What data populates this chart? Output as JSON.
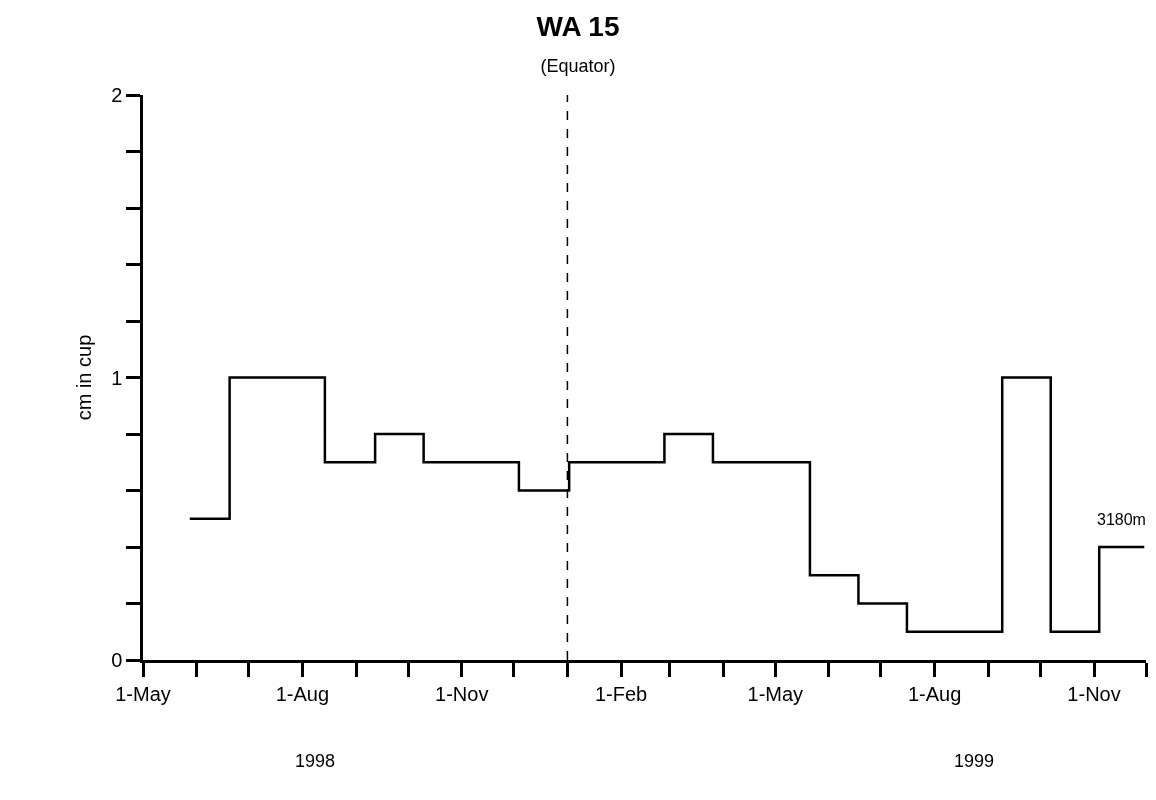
{
  "chart_data": {
    "type": "step",
    "title": "WA 15",
    "subtitle": "(Equator)",
    "ylabel": "cm in cup",
    "x": [
      "1998-05-28",
      "1998-06-20",
      "1998-08-14",
      "1998-09-12",
      "1998-10-10",
      "1998-12-04",
      "1999-01-02",
      "1999-02-26",
      "1999-03-26",
      "1999-05-21",
      "1999-06-18",
      "1999-07-16",
      "1999-09-09",
      "1999-10-07",
      "1999-11-04",
      "1999-11-30"
    ],
    "series": [
      {
        "color": "#000000",
        "values": [
          0.5,
          1,
          0.7,
          0.8,
          0.7,
          0.6,
          0.7,
          0.8,
          0.7,
          0.3,
          0.2,
          0.1,
          1,
          0.1,
          0.4,
          0.4
        ]
      }
    ],
    "xlim": [
      "1998-05-01",
      "1999-12-01"
    ],
    "xticks": [
      {
        "value": "1998-05-01",
        "label": "1-May"
      },
      {
        "value": "1998-06-01",
        "label": null
      },
      {
        "value": "1998-07-01",
        "label": null
      },
      {
        "value": "1998-08-01",
        "label": "1-Aug"
      },
      {
        "value": "1998-09-01",
        "label": null
      },
      {
        "value": "1998-10-01",
        "label": null
      },
      {
        "value": "1998-11-01",
        "label": "1-Nov"
      },
      {
        "value": "1998-12-01",
        "label": null
      },
      {
        "value": "1999-01-01",
        "label": null
      },
      {
        "value": "1999-02-01",
        "label": "1-Feb"
      },
      {
        "value": "1999-03-01",
        "label": null
      },
      {
        "value": "1999-04-01",
        "label": null
      },
      {
        "value": "1999-05-01",
        "label": "1-May"
      },
      {
        "value": "1999-06-01",
        "label": null
      },
      {
        "value": "1999-07-01",
        "label": null
      },
      {
        "value": "1999-08-01",
        "label": "1-Aug"
      },
      {
        "value": "1999-09-01",
        "label": null
      },
      {
        "value": "1999-10-01",
        "label": null
      },
      {
        "value": "1999-11-01",
        "label": "1-Nov"
      },
      {
        "value": "1999-12-01",
        "label": null
      }
    ],
    "ylim": [
      0,
      2
    ],
    "yticks": [
      0,
      {
        "value": 0.2,
        "label": null
      },
      {
        "value": 0.4,
        "label": null
      },
      {
        "value": 0.6,
        "label": null
      },
      {
        "value": 0.8,
        "label": null
      },
      1,
      {
        "value": 1.2,
        "label": null
      },
      {
        "value": 1.4,
        "label": null
      },
      {
        "value": 1.6,
        "label": null
      },
      {
        "value": 1.8,
        "label": null
      },
      2
    ],
    "ref_lines": [
      {
        "axis": "x",
        "value": "1999-01-01",
        "color": "#000000",
        "line_style": "dashed"
      }
    ],
    "annotations": [
      "1998",
      "1999",
      {
        "text": "3180m",
        "x": "1999-11-17",
        "y": 0.4
      }
    ],
    "marker": "none",
    "line_style": "solid"
  }
}
